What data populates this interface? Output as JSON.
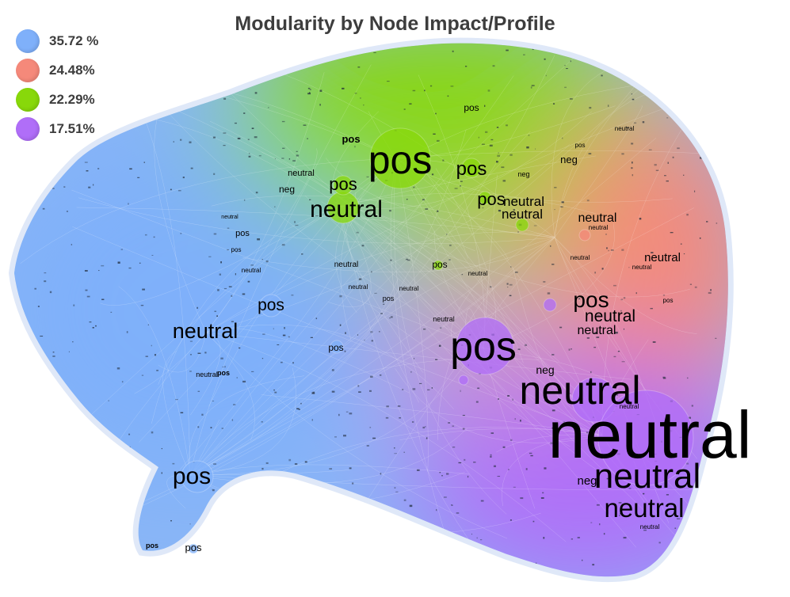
{
  "title": "Modularity by Node Impact/Profile",
  "legend": [
    {
      "label": "35.72 %",
      "color": "#7fb0fa"
    },
    {
      "label": "24.48%",
      "color": "#f5897a"
    },
    {
      "label": "22.29%",
      "color": "#88d80a"
    },
    {
      "label": "17.51%",
      "color": "#b06ef8"
    }
  ],
  "labels": {
    "neutral": "neutral",
    "pos": "pos",
    "neg": "neg"
  }
}
